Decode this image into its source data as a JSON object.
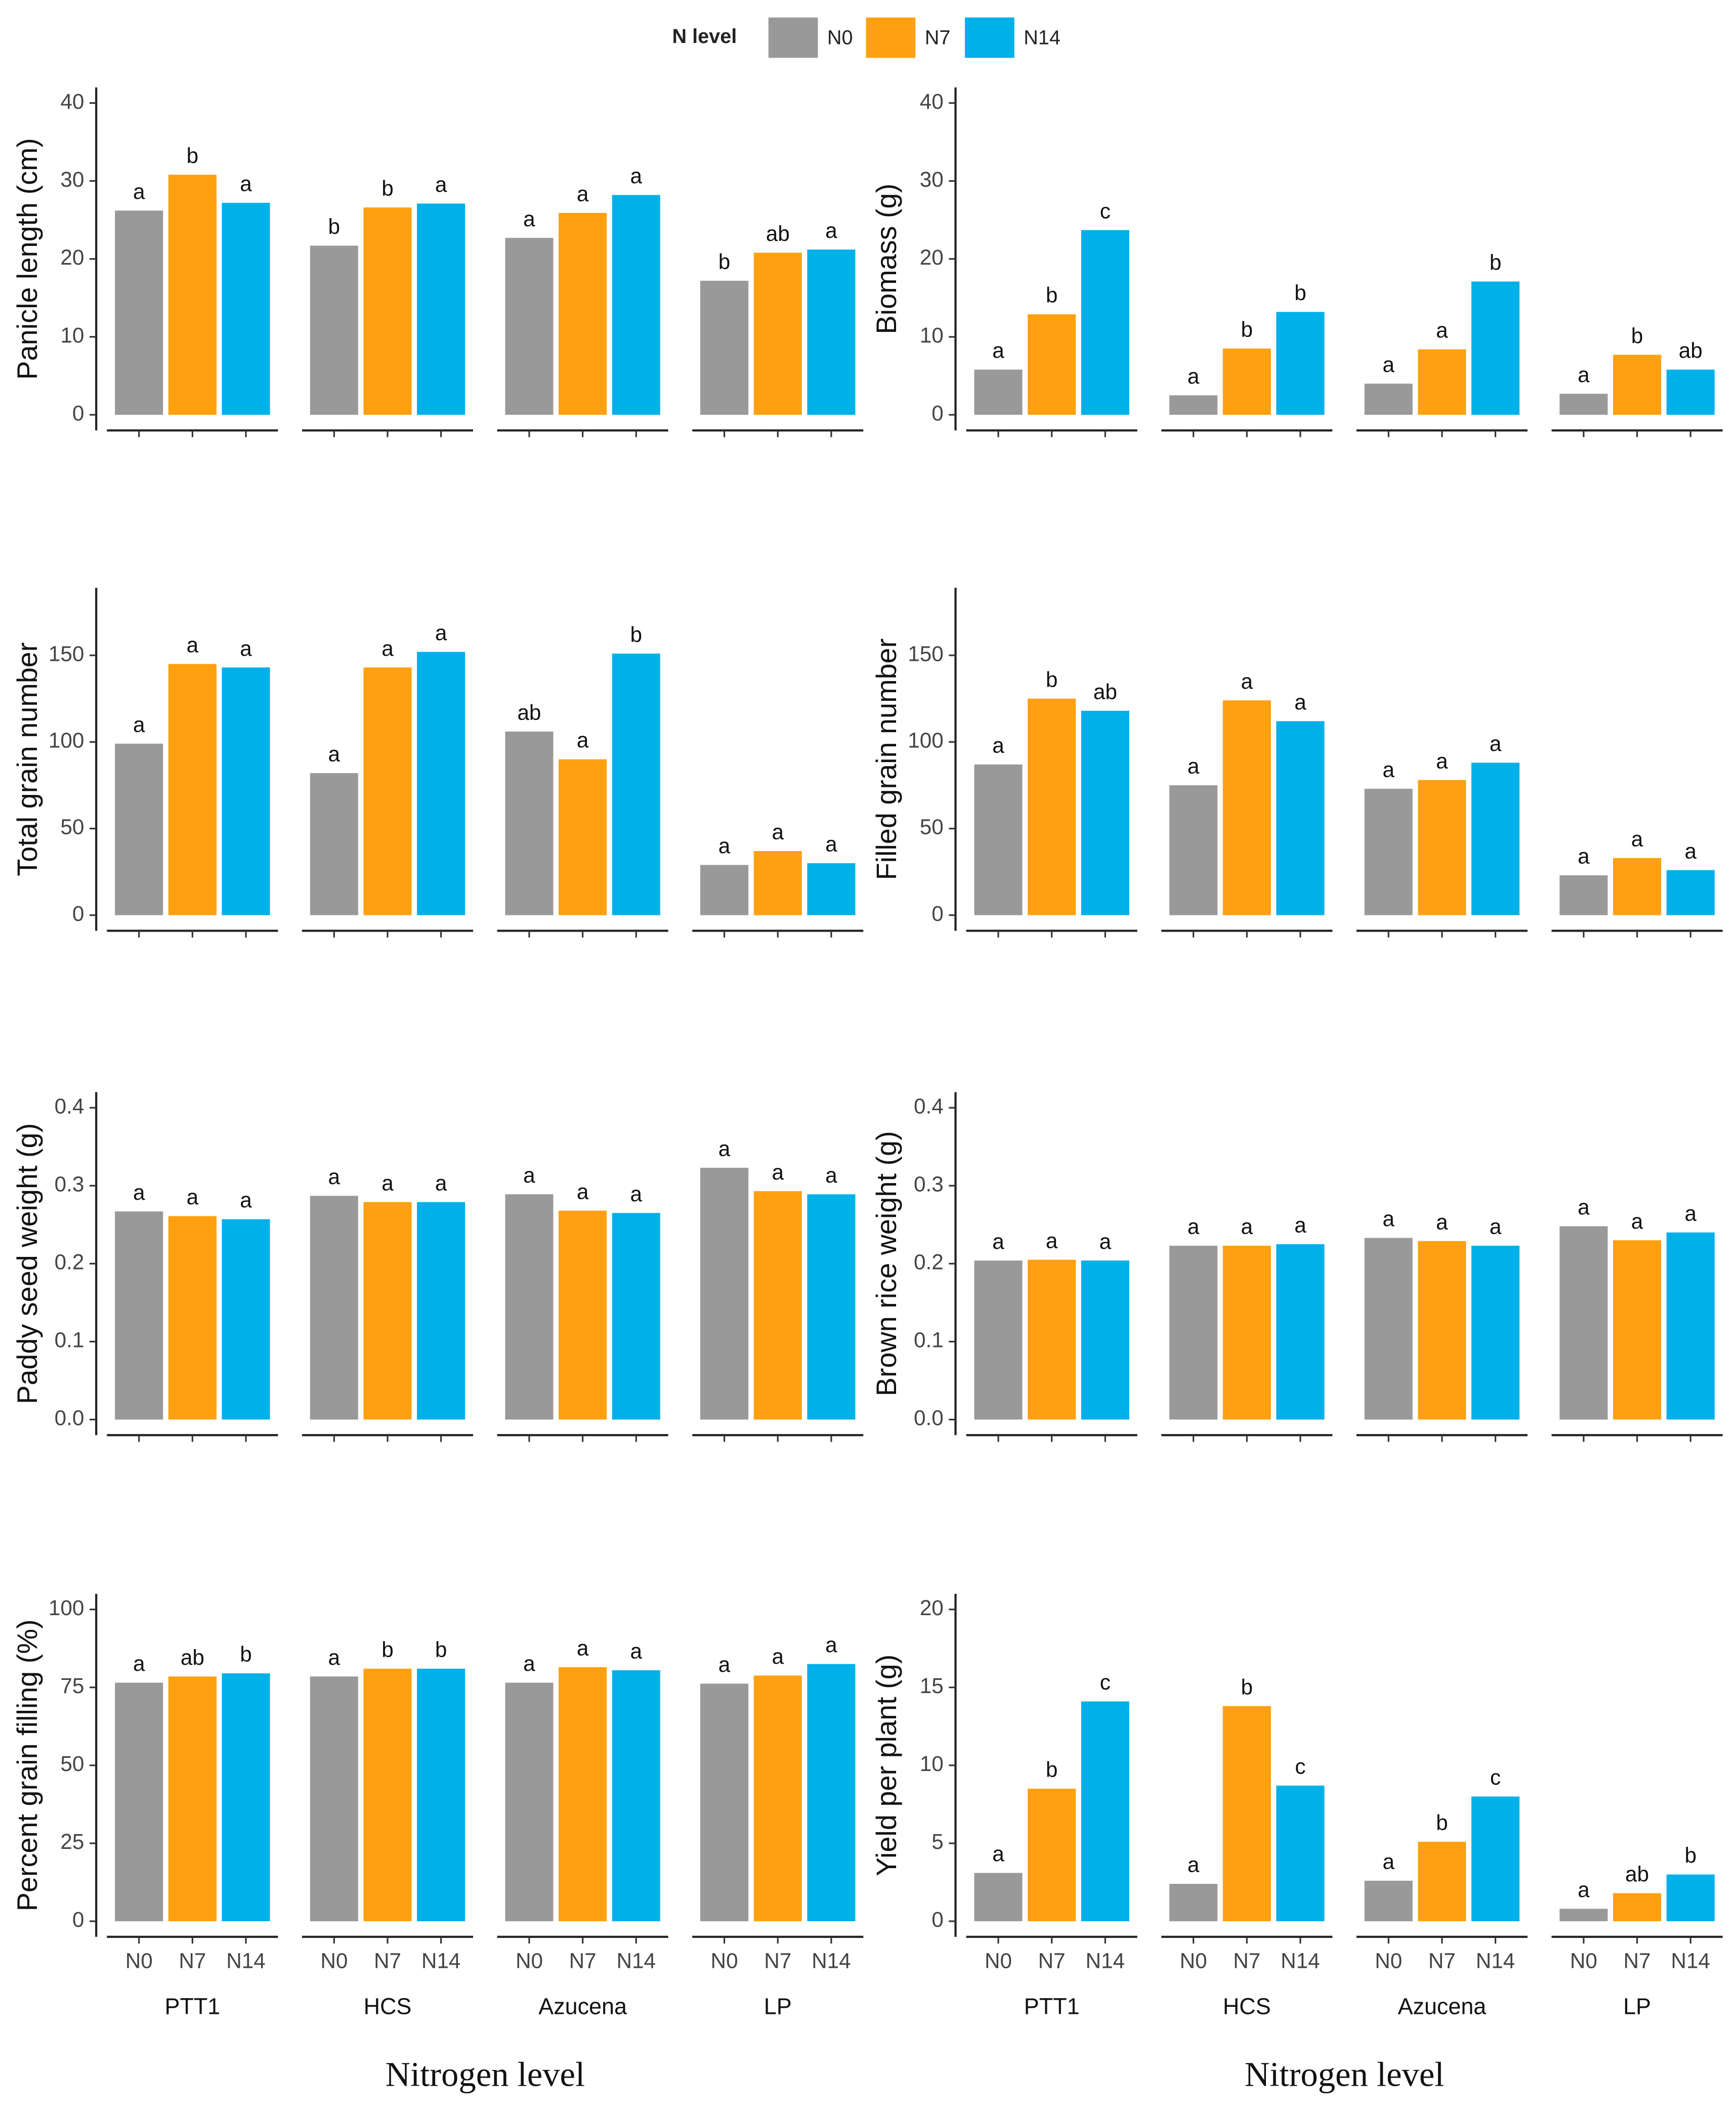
{
  "legend_title": "N level",
  "chart_data": [
    {
      "type": "bar",
      "ylabel": "Panicle length (cm)",
      "ylim": [
        -2,
        42
      ],
      "yticks": [
        0,
        10,
        20,
        30,
        40
      ],
      "series": [
        {
          "name": "N0",
          "color": "#999999",
          "values": [
            26.2,
            21.7,
            22.7,
            17.2
          ],
          "annotations": [
            "a",
            "b",
            "a",
            "b"
          ]
        },
        {
          "name": "N7",
          "color": "#FFA010",
          "values": [
            30.8,
            26.6,
            25.9,
            20.8
          ],
          "annotations": [
            "b",
            "b",
            "a",
            "ab"
          ]
        },
        {
          "name": "N14",
          "color": "#00B0E8",
          "values": [
            27.2,
            27.1,
            28.2,
            21.2
          ],
          "annotations": [
            "a",
            "a",
            "a",
            "a"
          ]
        }
      ]
    },
    {
      "type": "bar",
      "ylabel": "Biomass (g)",
      "ylim": [
        -2,
        42
      ],
      "yticks": [
        0,
        10,
        20,
        30,
        40
      ],
      "series": [
        {
          "name": "N0",
          "color": "#999999",
          "values": [
            5.8,
            2.5,
            4.0,
            2.7
          ],
          "annotations": [
            "a",
            "a",
            "a",
            "a"
          ]
        },
        {
          "name": "N7",
          "color": "#FFA010",
          "values": [
            12.9,
            8.5,
            8.4,
            7.7
          ],
          "annotations": [
            "b",
            "b",
            "a",
            "b"
          ]
        },
        {
          "name": "N14",
          "color": "#00B0E8",
          "values": [
            23.7,
            13.2,
            17.1,
            5.8
          ],
          "annotations": [
            "c",
            "b",
            "b",
            "ab"
          ]
        }
      ]
    },
    {
      "type": "bar",
      "ylabel": "Total grain number",
      "ylim": [
        -9,
        189
      ],
      "yticks": [
        0,
        50,
        100,
        150
      ],
      "series": [
        {
          "name": "N0",
          "color": "#999999",
          "values": [
            99,
            82,
            106,
            29
          ],
          "annotations": [
            "a",
            "a",
            "ab",
            "a"
          ]
        },
        {
          "name": "N7",
          "color": "#FFA010",
          "values": [
            145,
            143,
            90,
            37
          ],
          "annotations": [
            "a",
            "a",
            "a",
            "a"
          ]
        },
        {
          "name": "N14",
          "color": "#00B0E8",
          "values": [
            143,
            152,
            151,
            30
          ],
          "annotations": [
            "a",
            "a",
            "b",
            "a"
          ]
        }
      ]
    },
    {
      "type": "bar",
      "ylabel": "Filled grain number",
      "ylim": [
        -9,
        189
      ],
      "yticks": [
        0,
        50,
        100,
        150
      ],
      "series": [
        {
          "name": "N0",
          "color": "#999999",
          "values": [
            87,
            75,
            73,
            23
          ],
          "annotations": [
            "a",
            "a",
            "a",
            "a"
          ]
        },
        {
          "name": "N7",
          "color": "#FFA010",
          "values": [
            125,
            124,
            78,
            33
          ],
          "annotations": [
            "b",
            "a",
            "a",
            "a"
          ]
        },
        {
          "name": "N14",
          "color": "#00B0E8",
          "values": [
            118,
            112,
            88,
            26
          ],
          "annotations": [
            "ab",
            "a",
            "a",
            "a"
          ]
        }
      ]
    },
    {
      "type": "bar",
      "ylabel": "Paddy seed weight (g)",
      "ylim": [
        -0.02,
        0.42
      ],
      "yticks": [
        {
          "value": 0,
          "label": "0.0"
        },
        0.1,
        0.2,
        0.3,
        0.4
      ],
      "series": [
        {
          "name": "N0",
          "color": "#999999",
          "values": [
            0.267,
            0.287,
            0.289,
            0.323
          ],
          "annotations": [
            "a",
            "a",
            "a",
            "a"
          ]
        },
        {
          "name": "N7",
          "color": "#FFA010",
          "values": [
            0.261,
            0.279,
            0.268,
            0.293
          ],
          "annotations": [
            "a",
            "a",
            "a",
            "a"
          ]
        },
        {
          "name": "N14",
          "color": "#00B0E8",
          "values": [
            0.257,
            0.279,
            0.265,
            0.289
          ],
          "annotations": [
            "a",
            "a",
            "a",
            "a"
          ]
        }
      ]
    },
    {
      "type": "bar",
      "ylabel": "Brown rice weight (g)",
      "ylim": [
        -0.02,
        0.42
      ],
      "yticks": [
        {
          "value": 0,
          "label": "0.0"
        },
        0.1,
        0.2,
        0.3,
        0.4
      ],
      "series": [
        {
          "name": "N0",
          "color": "#999999",
          "values": [
            0.204,
            0.223,
            0.233,
            0.248
          ],
          "annotations": [
            "a",
            "a",
            "a",
            "a"
          ]
        },
        {
          "name": "N7",
          "color": "#FFA010",
          "values": [
            0.205,
            0.223,
            0.229,
            0.23
          ],
          "annotations": [
            "a",
            "a",
            "a",
            "a"
          ]
        },
        {
          "name": "N14",
          "color": "#00B0E8",
          "values": [
            0.204,
            0.225,
            0.223,
            0.24
          ],
          "annotations": [
            "a",
            "a",
            "a",
            "a"
          ]
        }
      ]
    },
    {
      "type": "bar",
      "ylabel": "Percent grain filling (%)",
      "ylim": [
        -5,
        105
      ],
      "yticks": [
        0,
        25,
        50,
        75,
        100
      ],
      "categories": [
        "PTT1",
        "HCS",
        "Azucena",
        "LP"
      ],
      "xlabel": "Nitrogen level",
      "series": [
        {
          "name": "N0",
          "color": "#999999",
          "values": [
            76.5,
            78.5,
            76.5,
            76.2
          ],
          "annotations": [
            "a",
            "a",
            "a",
            "a"
          ]
        },
        {
          "name": "N7",
          "color": "#FFA010",
          "values": [
            78.5,
            81,
            81.5,
            78.8
          ],
          "annotations": [
            "ab",
            "b",
            "a",
            "a"
          ]
        },
        {
          "name": "N14",
          "color": "#00B0E8",
          "values": [
            79.5,
            81,
            80.5,
            82.5
          ],
          "annotations": [
            "b",
            "b",
            "a",
            "a"
          ]
        }
      ]
    },
    {
      "type": "bar",
      "ylabel": "Yield per plant (g)",
      "ylim": [
        -1,
        21
      ],
      "yticks": [
        0,
        5,
        10,
        15,
        20
      ],
      "categories": [
        "PTT1",
        "HCS",
        "Azucena",
        "LP"
      ],
      "xlabel": "Nitrogen level",
      "series": [
        {
          "name": "N0",
          "color": "#999999",
          "values": [
            3.1,
            2.4,
            2.6,
            0.8
          ],
          "annotations": [
            "a",
            "a",
            "a",
            "a"
          ]
        },
        {
          "name": "N7",
          "color": "#FFA010",
          "values": [
            8.5,
            13.8,
            5.1,
            1.8
          ],
          "annotations": [
            "b",
            "b",
            "b",
            "ab"
          ]
        },
        {
          "name": "N14",
          "color": "#00B0E8",
          "values": [
            14.1,
            8.7,
            8.0,
            3.0
          ],
          "annotations": [
            "c",
            "c",
            "c",
            "b"
          ]
        }
      ]
    }
  ]
}
